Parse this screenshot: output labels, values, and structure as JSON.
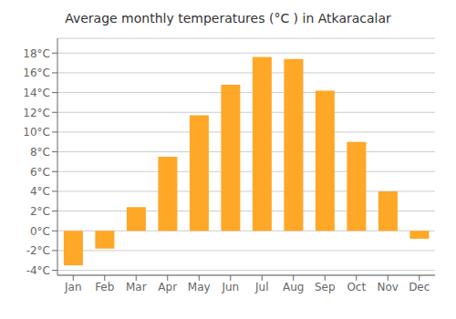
{
  "chart_data": {
    "type": "bar",
    "title": "Average monthly temperatures (°C ) in Atkaracalar",
    "categories": [
      "Jan",
      "Feb",
      "Mar",
      "Apr",
      "May",
      "Jun",
      "Jul",
      "Aug",
      "Sep",
      "Oct",
      "Nov",
      "Dec"
    ],
    "values": [
      -3.5,
      -1.8,
      2.4,
      7.5,
      11.7,
      14.8,
      17.6,
      17.4,
      14.2,
      9.0,
      4.0,
      -0.8
    ],
    "color": "#FFA726",
    "ylim": [
      -4.5,
      19.5
    ],
    "yticks": [
      {
        "value": -4,
        "label": "-4°C"
      },
      {
        "value": -2,
        "label": "-2°C"
      },
      {
        "value": 0,
        "label": "0°C"
      },
      {
        "value": 2,
        "label": "2°C"
      },
      {
        "value": 4,
        "label": "4°C"
      },
      {
        "value": 6,
        "label": "6°C"
      },
      {
        "value": 8,
        "label": "8°C"
      },
      {
        "value": 10,
        "label": "10°C"
      },
      {
        "value": 12,
        "label": "12°C"
      },
      {
        "value": 14,
        "label": "14°C"
      },
      {
        "value": 16,
        "label": "16°C"
      },
      {
        "value": 18,
        "label": "18°C"
      }
    ],
    "grid": true
  }
}
